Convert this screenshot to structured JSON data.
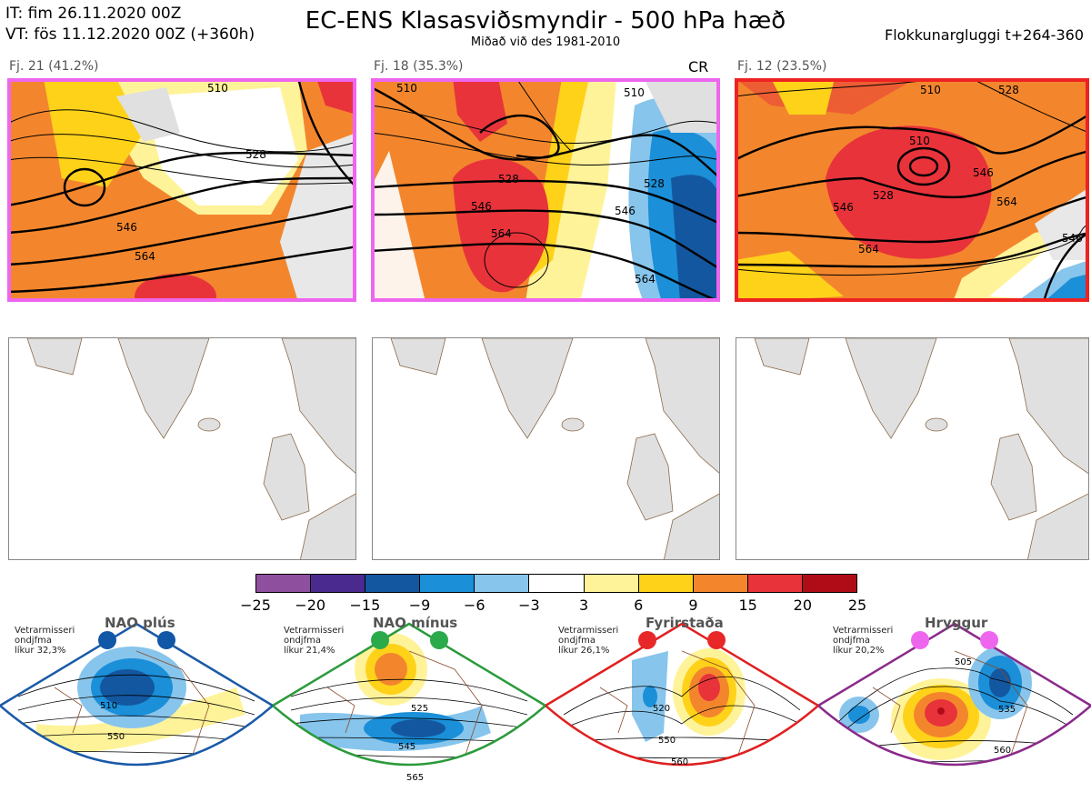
{
  "header": {
    "it_line": "IT: fim 26.11.2020 00Z",
    "vt_line": "VT: fös 11.12.2020 00Z  (+360h)",
    "title": "EC-ENS Klasasviðsmyndir - 500 hPa hæð",
    "subtitle": "Miðað við des 1981-2010",
    "window": "Flokkunargluggi t+264-360"
  },
  "clusters": [
    {
      "label": "Fj. 21 (41.2%)",
      "tag": "",
      "frame_color": "#ee66ee",
      "contours": [
        "528",
        "546",
        "564",
        "510"
      ]
    },
    {
      "label": "Fj. 18 (35.3%)",
      "tag": "CR",
      "frame_color": "#ee66ee",
      "contours": [
        "510",
        "528",
        "546",
        "564",
        "510",
        "528",
        "546",
        "564"
      ]
    },
    {
      "label": "Fj. 12 (23.5%)",
      "tag": "",
      "frame_color": "#ee2222",
      "contours": [
        "510",
        "528",
        "510",
        "528",
        "546",
        "564",
        "546",
        "564",
        "546"
      ]
    }
  ],
  "colorbar": {
    "colors": [
      "#8e4f9f",
      "#4b2a8f",
      "#1357a0",
      "#1b8fd8",
      "#87c5ec",
      "#ffffff",
      "#fff39a",
      "#ffd21a",
      "#f3862d",
      "#e8333b",
      "#b00c17"
    ],
    "ticks": [
      "−25",
      "−20",
      "−15",
      "−9",
      "−6",
      "−3",
      "3",
      "6",
      "9",
      "15",
      "20",
      "25"
    ]
  },
  "regimes": [
    {
      "name": "NAO plús",
      "season": "Vetrarmisseri",
      "months": "ondjfma",
      "prob": "líkur 32,3%",
      "edge": "#1a5aa8",
      "dot": "#1157a8",
      "contours": [
        "510",
        "550"
      ]
    },
    {
      "name": "NAO mínus",
      "season": "Vetrarmisseri",
      "months": "ondjfma",
      "prob": "líkur 21,4%",
      "edge": "#2a9a3a",
      "dot": "#2aaa4a",
      "contours": [
        "525",
        "545",
        "565"
      ]
    },
    {
      "name": "Fyrirstaða",
      "season": "Vetrarmisseri",
      "months": "ondjfma",
      "prob": "líkur 26,1%",
      "edge": "#e02020",
      "dot": "#e82828",
      "contours": [
        "520",
        "550",
        "560"
      ]
    },
    {
      "name": "Hryggur",
      "season": "Vetrarmisseri",
      "months": "ondjfma",
      "prob": "líkur 20,2%",
      "edge": "#8a2a8a",
      "dot": "#ee66ee",
      "contours": [
        "505",
        "535",
        "560"
      ]
    }
  ]
}
